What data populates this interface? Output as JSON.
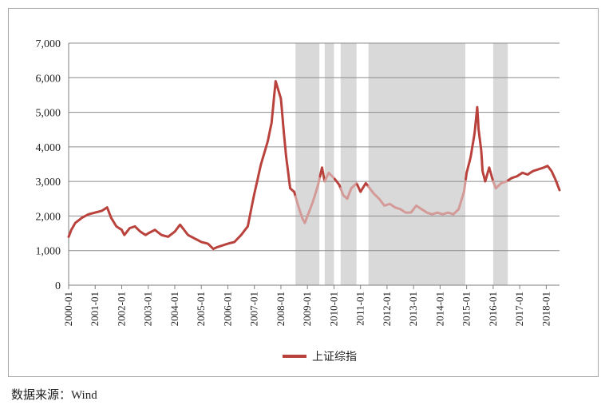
{
  "chart_data": {
    "type": "line",
    "title": "",
    "xlabel": "",
    "ylabel": "",
    "ylim": [
      0,
      7000
    ],
    "yticks": [
      0,
      1000,
      2000,
      3000,
      4000,
      5000,
      6000,
      7000
    ],
    "ytick_labels": [
      "0",
      "1,000",
      "2,000",
      "3,000",
      "4,000",
      "5,000",
      "6,000",
      "7,000"
    ],
    "xlim": [
      2000.0,
      2018.5
    ],
    "xtick_labels": [
      "2000-01",
      "2001-01",
      "2002-01",
      "2003-01",
      "2004-01",
      "2005-01",
      "2006-01",
      "2007-01",
      "2008-01",
      "2009-01",
      "2010-01",
      "2011-01",
      "2012-01",
      "2013-01",
      "2014-01",
      "2015-01",
      "2016-01",
      "2017-01",
      "2018-01"
    ],
    "grid": "horizontal",
    "legend_position": "bottom-center",
    "shaded_periods": [
      [
        2008.55,
        2009.45
      ],
      [
        2009.65,
        2010.0
      ],
      [
        2010.25,
        2010.85
      ],
      [
        2011.3,
        2014.95
      ],
      [
        2016.0,
        2016.55
      ]
    ],
    "series": [
      {
        "name": "上证综指",
        "color": "#b9423d",
        "faded_color": "#d49a98",
        "x": [
          2000.0,
          2000.1,
          2000.25,
          2000.5,
          2000.75,
          2001.0,
          2001.25,
          2001.45,
          2001.6,
          2001.8,
          2002.0,
          2002.1,
          2002.3,
          2002.5,
          2002.7,
          2002.9,
          2003.0,
          2003.25,
          2003.5,
          2003.75,
          2004.0,
          2004.2,
          2004.3,
          2004.5,
          2004.75,
          2005.0,
          2005.25,
          2005.45,
          2005.6,
          2005.8,
          2006.0,
          2006.25,
          2006.5,
          2006.75,
          2007.0,
          2007.25,
          2007.5,
          2007.65,
          2007.8,
          2008.0,
          2008.1,
          2008.2,
          2008.35,
          2008.5,
          2008.65,
          2008.8,
          2008.9,
          2009.0,
          2009.2,
          2009.4,
          2009.55,
          2009.65,
          2009.8,
          2010.0,
          2010.2,
          2010.35,
          2010.5,
          2010.65,
          2010.85,
          2011.0,
          2011.2,
          2011.35,
          2011.5,
          2011.7,
          2011.9,
          2012.1,
          2012.3,
          2012.5,
          2012.7,
          2012.9,
          2013.1,
          2013.3,
          2013.5,
          2013.7,
          2013.9,
          2014.1,
          2014.3,
          2014.5,
          2014.7,
          2014.9,
          2015.0,
          2015.15,
          2015.3,
          2015.4,
          2015.45,
          2015.55,
          2015.6,
          2015.7,
          2015.85,
          2016.0,
          2016.1,
          2016.3,
          2016.5,
          2016.7,
          2016.9,
          2017.1,
          2017.3,
          2017.5,
          2017.7,
          2017.9,
          2018.05,
          2018.2,
          2018.35,
          2018.5
        ],
        "y": [
          1400,
          1600,
          1800,
          1950,
          2050,
          2100,
          2150,
          2250,
          1950,
          1700,
          1600,
          1450,
          1650,
          1700,
          1550,
          1450,
          1500,
          1600,
          1450,
          1400,
          1550,
          1750,
          1650,
          1450,
          1350,
          1250,
          1200,
          1050,
          1100,
          1150,
          1200,
          1250,
          1450,
          1700,
          2650,
          3500,
          4150,
          4700,
          5900,
          5400,
          4500,
          3700,
          2800,
          2700,
          2300,
          1950,
          1800,
          2000,
          2400,
          2900,
          3400,
          3000,
          3250,
          3100,
          2900,
          2600,
          2500,
          2800,
          2950,
          2700,
          2950,
          2800,
          2650,
          2500,
          2300,
          2350,
          2250,
          2200,
          2100,
          2100,
          2300,
          2200,
          2100,
          2050,
          2100,
          2050,
          2100,
          2050,
          2200,
          2700,
          3250,
          3700,
          4400,
          5150,
          4500,
          3900,
          3300,
          3000,
          3400,
          3000,
          2800,
          2950,
          3000,
          3100,
          3150,
          3250,
          3200,
          3300,
          3350,
          3400,
          3450,
          3300,
          3050,
          2750
        ]
      }
    ],
    "source_note": "数据来源：Wind"
  }
}
